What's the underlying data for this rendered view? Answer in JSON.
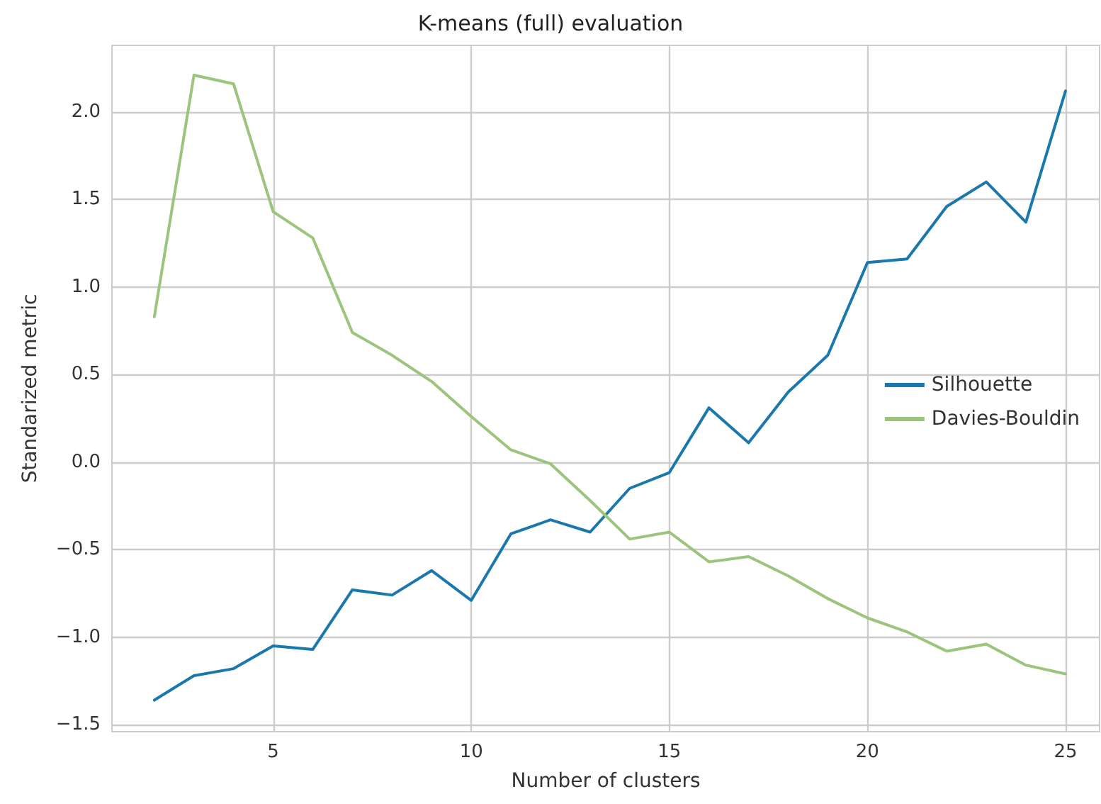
{
  "chart_data": {
    "type": "line",
    "title": "K-means (full) evaluation",
    "xlabel": "Number of clusters",
    "ylabel": "Standarized metric",
    "x": [
      2,
      3,
      4,
      5,
      6,
      7,
      8,
      9,
      10,
      11,
      12,
      13,
      14,
      15,
      16,
      17,
      18,
      19,
      20,
      21,
      22,
      23,
      24,
      25
    ],
    "series": [
      {
        "name": "Silhouette",
        "color": "#1a78ad",
        "values": [
          -1.36,
          -1.22,
          -1.18,
          -1.05,
          -1.07,
          -0.73,
          -0.76,
          -0.62,
          -0.79,
          -0.41,
          -0.33,
          -0.4,
          -0.15,
          -0.06,
          0.31,
          0.11,
          0.4,
          0.61,
          1.14,
          1.16,
          1.46,
          1.6,
          1.37,
          2.12
        ]
      },
      {
        "name": "Davies-Bouldin",
        "color": "#9bc47c",
        "values": [
          0.83,
          2.21,
          2.16,
          1.43,
          1.28,
          0.74,
          0.61,
          0.46,
          0.26,
          0.07,
          -0.01,
          -0.22,
          -0.44,
          -0.4,
          -0.57,
          -0.54,
          -0.65,
          -0.78,
          -0.89,
          -0.97,
          -1.08,
          -1.04,
          -1.16,
          -1.21
        ]
      }
    ],
    "xlim": [
      0.93,
      25.86
    ],
    "ylim": [
      -1.54,
      2.38
    ],
    "xticks": [
      5,
      10,
      15,
      20,
      25
    ],
    "yticks": [
      {
        "value": -1.5,
        "label": "−1.5"
      },
      {
        "value": -1,
        "label": "−1.0"
      },
      {
        "value": -0.5,
        "label": "−0.5"
      },
      {
        "value": 0,
        "label": "0.0"
      },
      {
        "value": 0.5,
        "label": "0.5"
      },
      {
        "value": 1,
        "label": "1.0"
      },
      {
        "value": 1.5,
        "label": "1.5"
      },
      {
        "value": 2,
        "label": "2.0"
      }
    ],
    "grid": true,
    "legend": "right",
    "marker": "none",
    "line_style": "solid"
  }
}
